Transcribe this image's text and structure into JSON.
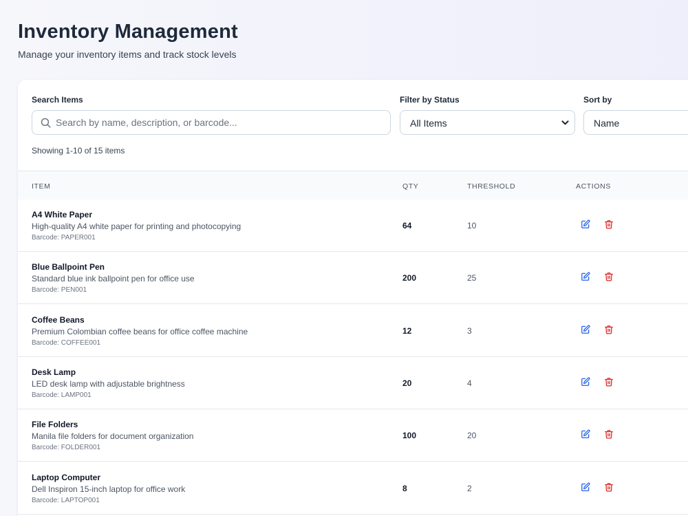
{
  "page": {
    "title": "Inventory Management",
    "subtitle": "Manage your inventory items and track stock levels"
  },
  "filters": {
    "search": {
      "label": "Search Items",
      "placeholder": "Search by name, description, or barcode...",
      "value": "",
      "icon": "search-icon"
    },
    "status": {
      "label": "Filter by Status",
      "selected": "All Items",
      "icon": "chevron-down-icon"
    },
    "sort": {
      "label": "Sort by",
      "selected": "Name"
    },
    "showing": "Showing 1-10 of 15 items"
  },
  "table": {
    "headers": {
      "item": "Item",
      "qty": "Qty",
      "threshold": "Threshold",
      "actions": "Actions"
    },
    "rows": [
      {
        "name": "A4 White Paper",
        "description": "High-quality A4 white paper for printing and photocopying",
        "barcode": "Barcode: PAPER001",
        "qty": "64",
        "threshold": "10"
      },
      {
        "name": "Blue Ballpoint Pen",
        "description": "Standard blue ink ballpoint pen for office use",
        "barcode": "Barcode: PEN001",
        "qty": "200",
        "threshold": "25"
      },
      {
        "name": "Coffee Beans",
        "description": "Premium Colombian coffee beans for office coffee machine",
        "barcode": "Barcode: COFFEE001",
        "qty": "12",
        "threshold": "3"
      },
      {
        "name": "Desk Lamp",
        "description": "LED desk lamp with adjustable brightness",
        "barcode": "Barcode: LAMP001",
        "qty": "20",
        "threshold": "4"
      },
      {
        "name": "File Folders",
        "description": "Manila file folders for document organization",
        "barcode": "Barcode: FOLDER001",
        "qty": "100",
        "threshold": "20"
      },
      {
        "name": "Laptop Computer",
        "description": "Dell Inspiron 15-inch laptop for office work",
        "barcode": "Barcode: LAPTOP001",
        "qty": "8",
        "threshold": "2"
      }
    ],
    "action_icons": {
      "edit": "edit-icon",
      "delete": "trash-icon"
    }
  },
  "colors": {
    "edit": "#2563eb",
    "delete": "#dc2626",
    "title": "#1e2a3b",
    "header_bg": "#f8fafc"
  }
}
